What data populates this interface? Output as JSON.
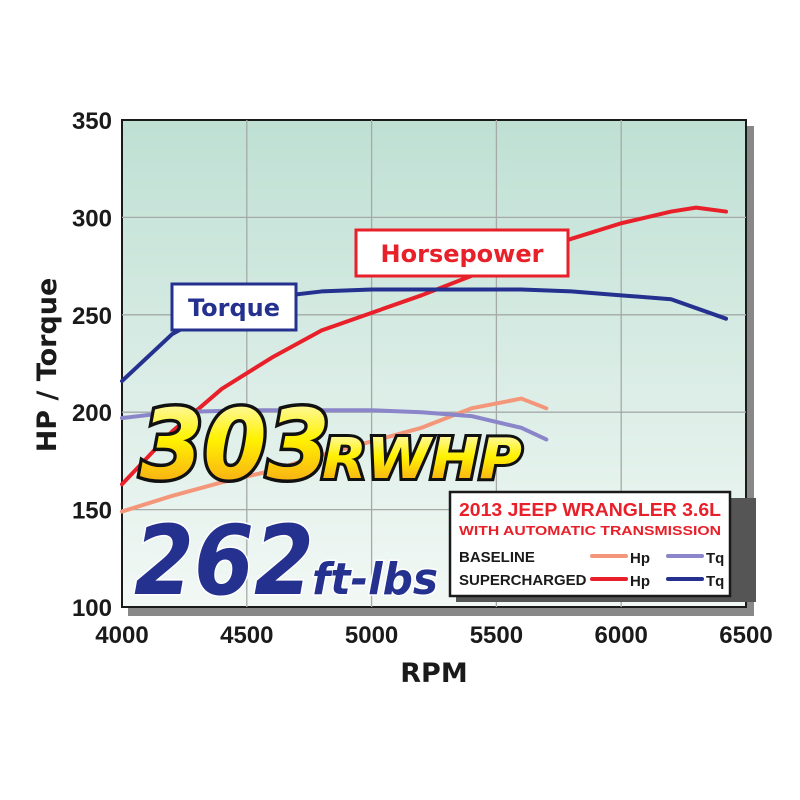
{
  "chart_data": {
    "type": "line",
    "xlabel": "RPM",
    "ylabel": "HP / Torque",
    "xlim": [
      4000,
      6500
    ],
    "ylim": [
      100,
      350
    ],
    "xticks": [
      4000,
      4500,
      5000,
      5500,
      6000,
      6500
    ],
    "yticks": [
      100,
      150,
      200,
      250,
      300,
      350
    ],
    "grid": true,
    "series": [
      {
        "group": "SUPERCHARGED",
        "name": "Hp",
        "color": "#e8202a",
        "x": [
          4000,
          4200,
          4400,
          4600,
          4800,
          5000,
          5200,
          5400,
          5600,
          5800,
          6000,
          6200,
          6300,
          6420
        ],
        "y": [
          163,
          190,
          212,
          228,
          242,
          251,
          260,
          270,
          280,
          289,
          297,
          303,
          305,
          303
        ]
      },
      {
        "group": "SUPERCHARGED",
        "name": "Tq",
        "color": "#25318f",
        "x": [
          4000,
          4200,
          4400,
          4600,
          4800,
          5000,
          5200,
          5400,
          5600,
          5800,
          6000,
          6200,
          6420
        ],
        "y": [
          216,
          240,
          254,
          259,
          262,
          263,
          263,
          263,
          263,
          262,
          260,
          258,
          248
        ]
      },
      {
        "group": "BASELINE",
        "name": "Hp",
        "color": "#f4967a",
        "x": [
          4000,
          4200,
          4400,
          4600,
          4800,
          5000,
          5200,
          5400,
          5600,
          5700
        ],
        "y": [
          149,
          157,
          164,
          170,
          178,
          185,
          192,
          202,
          207,
          202
        ]
      },
      {
        "group": "BASELINE",
        "name": "Tq",
        "color": "#8b86c9",
        "x": [
          4000,
          4200,
          4500,
          4800,
          5000,
          5200,
          5400,
          5600,
          5700
        ],
        "y": [
          197,
          200,
          201,
          201,
          201,
          200,
          198,
          192,
          186
        ]
      }
    ],
    "annotations": {
      "torque_label": "Torque",
      "horsepower_label": "Horsepower",
      "peak_hp_number": "303",
      "peak_hp_unit": "RWHP",
      "peak_tq_number": "262",
      "peak_tq_unit": "ft-lbs"
    },
    "legend": {
      "placement": "bottom-right",
      "title": "2013 JEEP WRANGLER 3.6L",
      "subtitle": "WITH AUTOMATIC TRANSMISSION",
      "rows": [
        {
          "label": "BASELINE",
          "hp": "Hp",
          "tq": "Tq"
        },
        {
          "label": "SUPERCHARGED",
          "hp": "Hp",
          "tq": "Tq"
        }
      ]
    }
  }
}
